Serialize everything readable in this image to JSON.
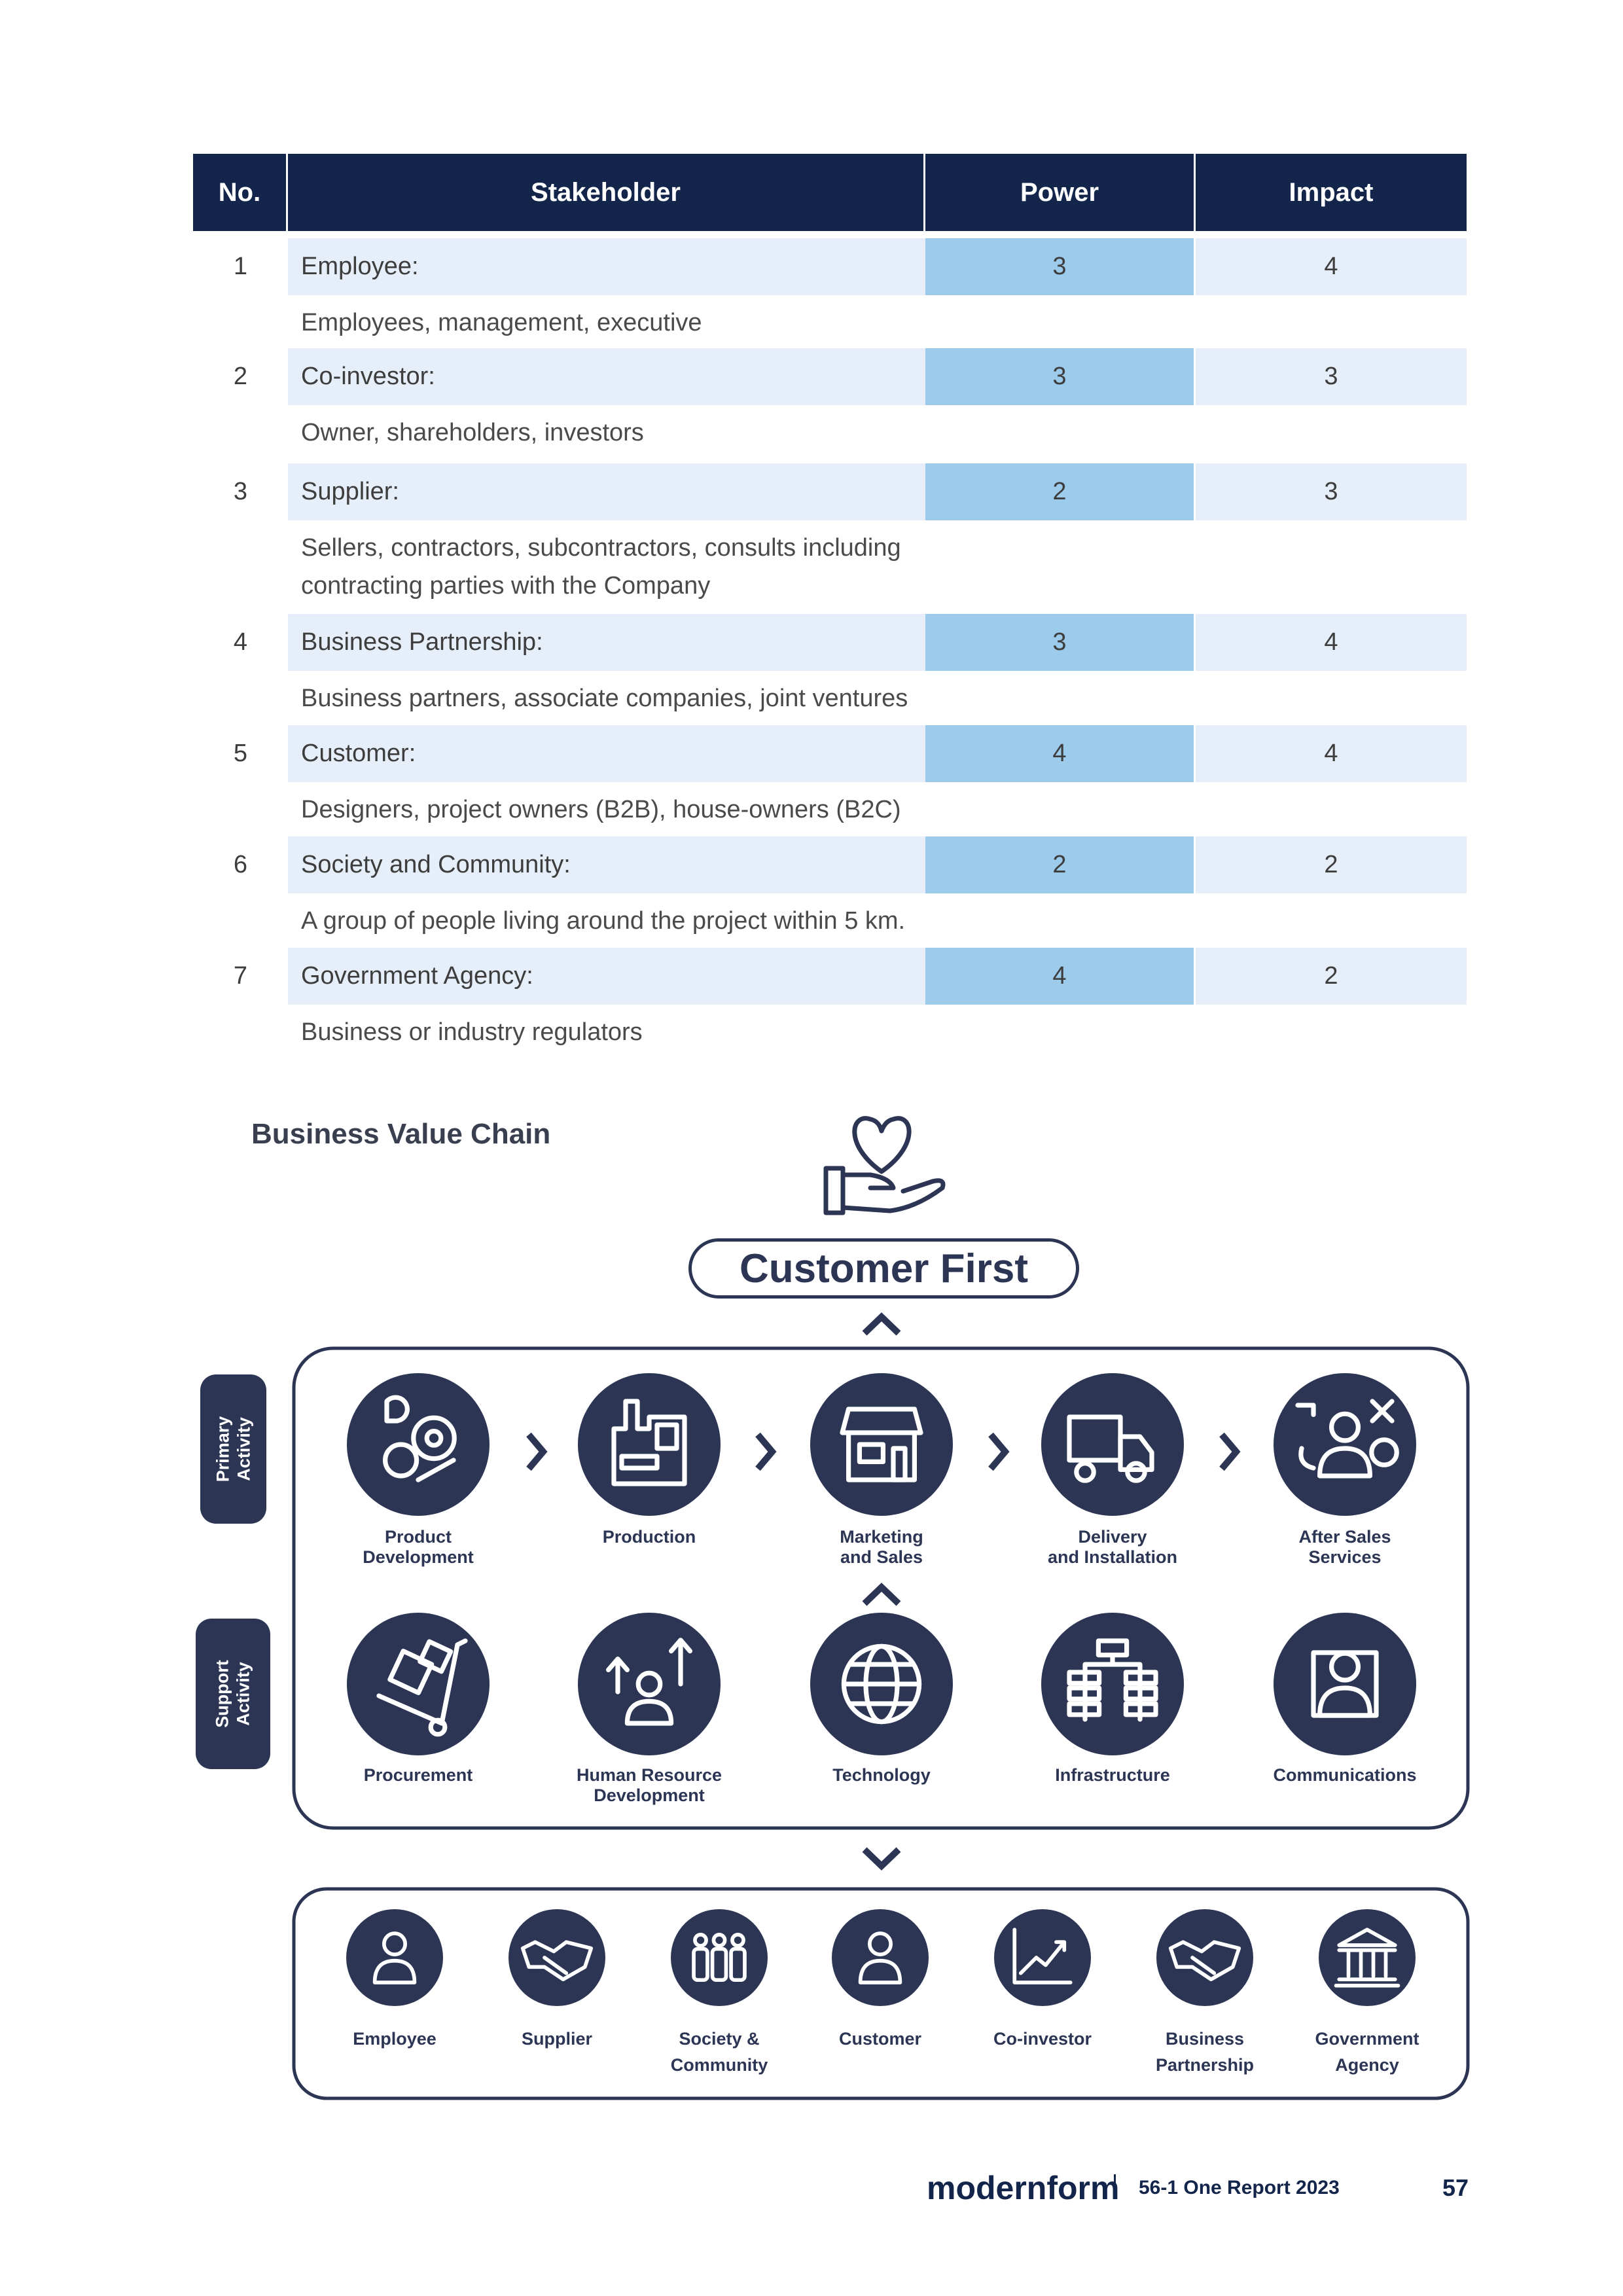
{
  "table": {
    "headers": [
      "No.",
      "Stakeholder",
      "Power",
      "Impact"
    ],
    "rows": [
      {
        "no": "1",
        "name": "Employee:",
        "description": "Employees, management, executive",
        "power": "3",
        "impact": "4"
      },
      {
        "no": "2",
        "name": "Co-investor:",
        "description": "Owner, shareholders, investors",
        "power": "3",
        "impact": "3"
      },
      {
        "no": "3",
        "name": "Supplier:",
        "description": "Sellers, contractors, subcontractors, consults including\ncontracting parties with the Company",
        "power": "2",
        "impact": "3"
      },
      {
        "no": "4",
        "name": "Business Partnership:",
        "description": "Business partners, associate companies, joint ventures",
        "power": "3",
        "impact": "4"
      },
      {
        "no": "5",
        "name": "Customer:",
        "description": "Designers, project owners (B2B), house-owners (B2C)",
        "power": "4",
        "impact": "4"
      },
      {
        "no": "6",
        "name": "Society and Community:",
        "description": "A group of people living around the project within 5 km.",
        "power": "2",
        "impact": "2"
      },
      {
        "no": "7",
        "name": "Government Agency:",
        "description": "Business or industry regulators",
        "power": "4",
        "impact": "2"
      }
    ]
  },
  "value_chain": {
    "title": "Business Value Chain",
    "top": "Customer First",
    "primary_label": "Primary\nActivity",
    "support_label": "Support\nActivity",
    "primary": [
      "Product\nDevelopment",
      "Production",
      "Marketing\nand Sales",
      "Delivery\nand Installation",
      "After Sales\nServices"
    ],
    "support": [
      "Procurement",
      "Human Resource\nDevelopment",
      "Technology",
      "Infrastructure",
      "Communications"
    ],
    "stakeholders": [
      "Employee",
      "Supplier",
      "Society &\nCommunity",
      "Customer",
      "Co-investor",
      "Business\nPartnership",
      "Government\nAgency"
    ]
  },
  "footer": {
    "brand": "modernform",
    "report": "56-1 One Report  2023",
    "page": "57"
  }
}
